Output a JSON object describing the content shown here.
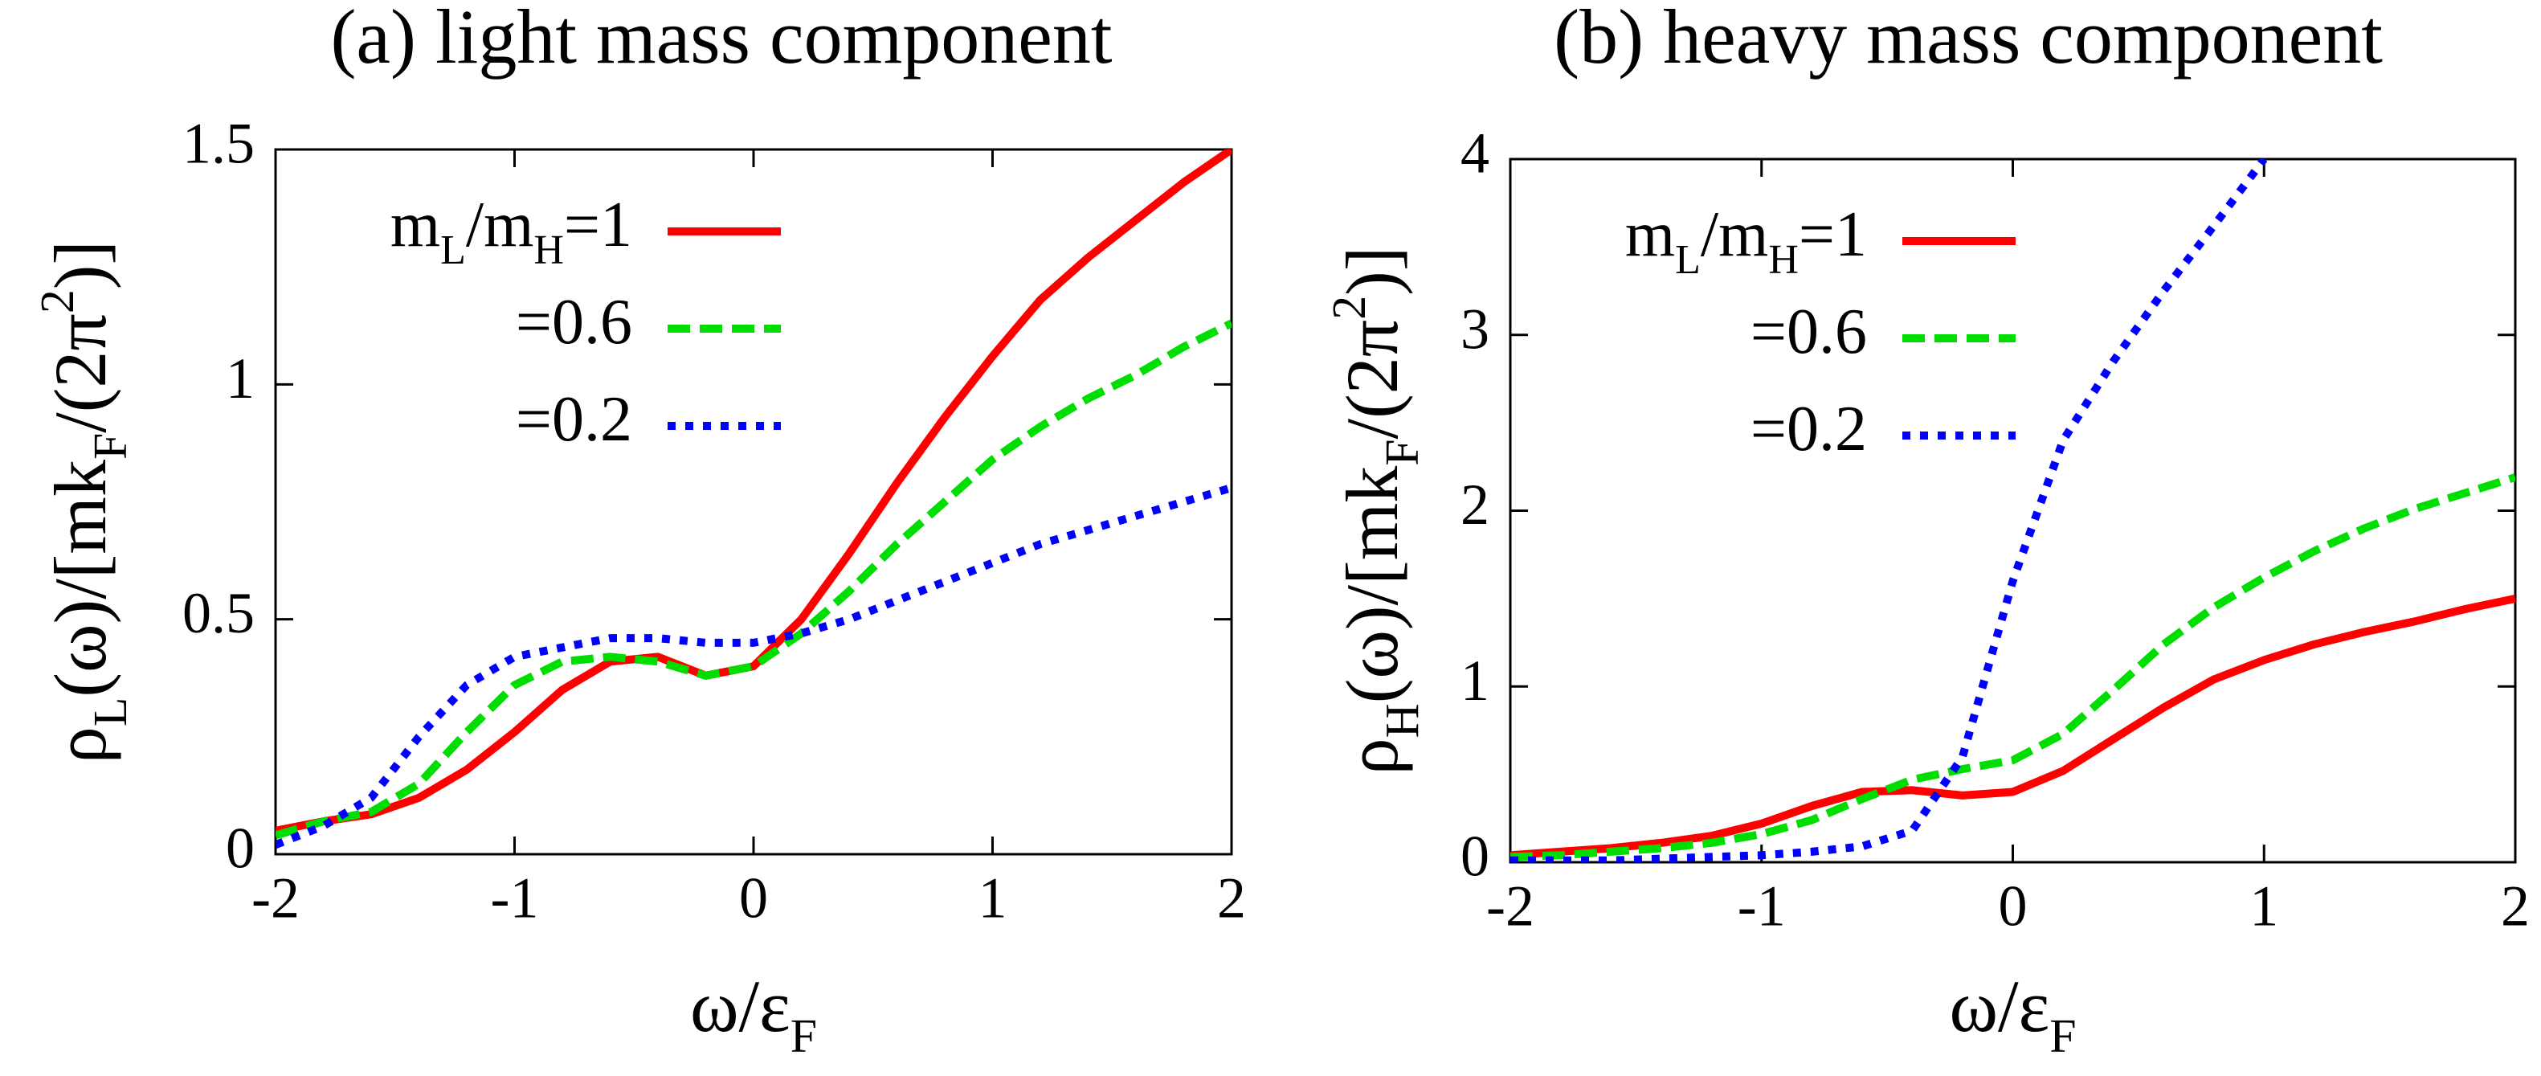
{
  "chart_data": [
    {
      "type": "line",
      "title": "(a) light mass component",
      "xlabel": [
        {
          "t": "ω/ε"
        },
        {
          "sub": "F"
        }
      ],
      "ylabel": [
        {
          "t": "ρ"
        },
        {
          "sub": "L"
        },
        {
          "t": "(ω)/[mk"
        },
        {
          "sub": "F"
        },
        {
          "t": "/(2π"
        },
        {
          "sup": "2"
        },
        {
          "t": ")]"
        }
      ],
      "x": [
        -2,
        -1.8,
        -1.6,
        -1.4,
        -1.2,
        -1,
        -0.8,
        -0.6,
        -0.4,
        -0.2,
        0,
        0.2,
        0.4,
        0.6,
        0.8,
        1,
        1.2,
        1.4,
        1.6,
        1.8,
        2
      ],
      "xlim": [
        -2,
        2
      ],
      "xticks": [
        -2,
        -1,
        0,
        1,
        2
      ],
      "ylim": [
        0,
        1.5
      ],
      "yticks": [
        0,
        0.5,
        1,
        1.5
      ],
      "legend": "top-left",
      "series": [
        {
          "name": [
            {
              "t": "m"
            },
            {
              "sub": "L"
            },
            {
              "t": "/m"
            },
            {
              "sub": "H"
            },
            {
              "t": "=1"
            }
          ],
          "color": "#ff0000",
          "style": "solid",
          "values": [
            0.05,
            0.07,
            0.085,
            0.12,
            0.18,
            0.26,
            0.35,
            0.41,
            0.42,
            0.38,
            0.4,
            0.5,
            0.64,
            0.79,
            0.93,
            1.06,
            1.18,
            1.27,
            1.35,
            1.43,
            1.5
          ]
        },
        {
          "name": [
            {
              "t": "=0.6"
            }
          ],
          "color": "#00dd00",
          "style": "dashed",
          "values": [
            0.04,
            0.07,
            0.09,
            0.15,
            0.26,
            0.36,
            0.41,
            0.42,
            0.41,
            0.38,
            0.4,
            0.47,
            0.56,
            0.66,
            0.75,
            0.84,
            0.91,
            0.97,
            1.02,
            1.08,
            1.13
          ]
        },
        {
          "name": [
            {
              "t": "=0.2"
            }
          ],
          "color": "#0000ff",
          "style": "dotted",
          "values": [
            0.02,
            0.06,
            0.12,
            0.25,
            0.36,
            0.42,
            0.44,
            0.46,
            0.46,
            0.45,
            0.45,
            0.47,
            0.5,
            0.54,
            0.58,
            0.62,
            0.66,
            0.69,
            0.72,
            0.75,
            0.78
          ]
        }
      ]
    },
    {
      "type": "line",
      "title": "(b) heavy mass component",
      "xlabel": [
        {
          "t": "ω/ε"
        },
        {
          "sub": "F"
        }
      ],
      "ylabel": [
        {
          "t": "ρ"
        },
        {
          "sub": "H"
        },
        {
          "t": "(ω)/[mk"
        },
        {
          "sub": "F"
        },
        {
          "t": "/(2π"
        },
        {
          "sup": "2"
        },
        {
          "t": ")]"
        }
      ],
      "x": [
        -2,
        -1.8,
        -1.6,
        -1.4,
        -1.2,
        -1,
        -0.8,
        -0.6,
        -0.4,
        -0.2,
        0,
        0.2,
        0.4,
        0.6,
        0.8,
        1,
        1.2,
        1.4,
        1.6,
        1.8,
        2
      ],
      "xlim": [
        -2,
        2
      ],
      "xticks": [
        -2,
        -1,
        0,
        1,
        2
      ],
      "ylim": [
        0,
        4
      ],
      "yticks": [
        0,
        1,
        2,
        3,
        4
      ],
      "legend": "top-left",
      "series": [
        {
          "name": [
            {
              "t": "m"
            },
            {
              "sub": "L"
            },
            {
              "t": "/m"
            },
            {
              "sub": "H"
            },
            {
              "t": "=1"
            }
          ],
          "color": "#ff0000",
          "style": "solid",
          "values": [
            0.04,
            0.06,
            0.08,
            0.11,
            0.15,
            0.22,
            0.32,
            0.4,
            0.41,
            0.38,
            0.4,
            0.52,
            0.7,
            0.88,
            1.04,
            1.15,
            1.24,
            1.31,
            1.37,
            1.44,
            1.5
          ]
        },
        {
          "name": [
            {
              "t": "=0.6"
            }
          ],
          "color": "#00dd00",
          "style": "dashed",
          "values": [
            0.03,
            0.04,
            0.06,
            0.08,
            0.11,
            0.16,
            0.24,
            0.36,
            0.47,
            0.53,
            0.58,
            0.73,
            0.98,
            1.24,
            1.45,
            1.62,
            1.77,
            1.9,
            2.01,
            2.1,
            2.19
          ]
        },
        {
          "name": [
            {
              "t": "=0.2"
            }
          ],
          "color": "#0000ff",
          "style": "dotted",
          "values": [
            0.01,
            0.01,
            0.01,
            0.02,
            0.03,
            0.04,
            0.06,
            0.09,
            0.18,
            0.6,
            1.6,
            2.4,
            2.85,
            3.25,
            3.62,
            4.0,
            null,
            null,
            null,
            null,
            null
          ]
        }
      ]
    }
  ]
}
